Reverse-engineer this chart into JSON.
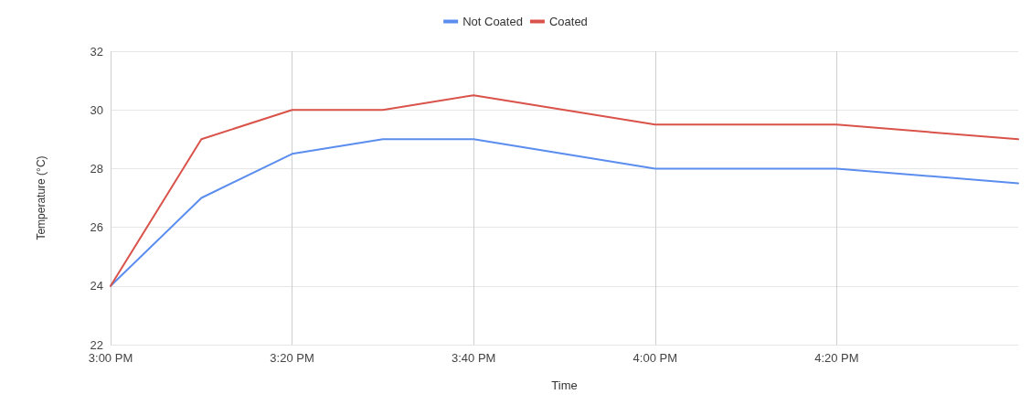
{
  "chart_data": {
    "type": "line",
    "xlabel": "Time",
    "ylabel": "Temperature (°C)",
    "x": [
      15,
      15.1667,
      15.3333,
      15.5,
      15.6667,
      16,
      16.3333,
      16.6667
    ],
    "series": [
      {
        "name": "Not Coated",
        "color": "#5b8def",
        "values": [
          24,
          27,
          28.5,
          29,
          29,
          28,
          28,
          27.5
        ]
      },
      {
        "name": "Coated",
        "color": "#d9534a",
        "values": [
          24,
          29,
          30,
          30,
          30.5,
          29.5,
          29.5,
          29
        ]
      }
    ],
    "xlim": [
      15,
      16.6667
    ],
    "xticks": [
      {
        "value": 15,
        "label": "3:00 PM"
      },
      {
        "value": 15.3333,
        "label": "3:20 PM"
      },
      {
        "value": 15.6667,
        "label": "3:40 PM"
      },
      {
        "value": 16,
        "label": "4:00 PM"
      },
      {
        "value": 16.3333,
        "label": "4:20 PM"
      }
    ],
    "ylim": [
      22,
      32
    ],
    "yticks": [
      22,
      24,
      26,
      28,
      30,
      32
    ],
    "grid": true,
    "legend": "top",
    "marker": "none",
    "line_style": "solid"
  }
}
